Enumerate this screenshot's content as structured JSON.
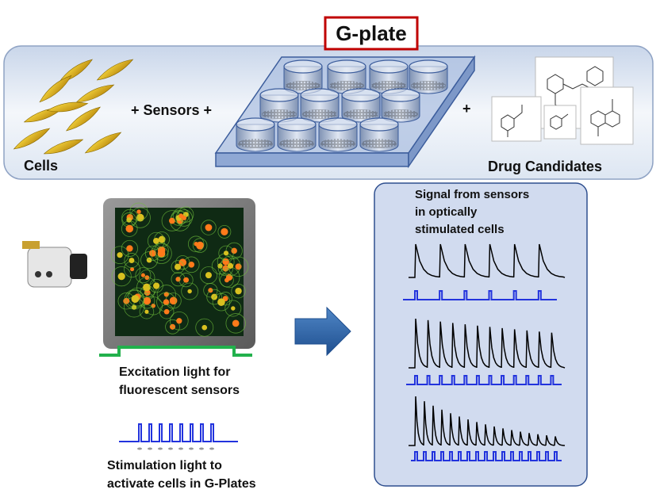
{
  "header": {
    "title": "G-plate"
  },
  "top_panel": {
    "cells_label": "Cells",
    "sensors_label": "+ Sensors +",
    "plus_label": "+",
    "drug_label": "Drug Candidates"
  },
  "excitation": {
    "lines": [
      "Excitation light for",
      "fluorescent sensors"
    ]
  },
  "stimulation": {
    "lines": [
      "Stimulation light to",
      "activate cells in G-Plates"
    ]
  },
  "signal_panel": {
    "lines": [
      "Signal from sensors",
      "in optically",
      "stimulated cells"
    ]
  }
}
